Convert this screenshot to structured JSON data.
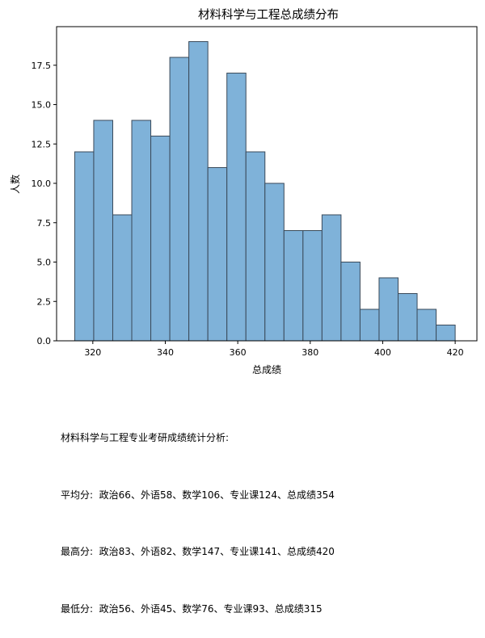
{
  "chart_data": {
    "type": "bar",
    "title": "材料科学与工程总成绩分布",
    "xlabel": "总成绩",
    "ylabel": "人数",
    "xlim": [
      310,
      426
    ],
    "ylim": [
      0,
      19.95
    ],
    "bin_start": 315,
    "bin_width": 5.25,
    "values": [
      12,
      14,
      8,
      14,
      13,
      18,
      19,
      11,
      17,
      12,
      10,
      7,
      7,
      8,
      5,
      2,
      4,
      3,
      2,
      1
    ],
    "xticks": [
      320,
      340,
      360,
      380,
      400,
      420
    ],
    "yticks": [
      0.0,
      2.5,
      5.0,
      7.5,
      10.0,
      12.5,
      15.0,
      17.5
    ],
    "yticklabels": [
      "0.0",
      "2.5",
      "5.0",
      "7.5",
      "10.0",
      "12.5",
      "15.0",
      "17.5"
    ],
    "bar_color": "#7fb2d9",
    "edge_color": "#3a4a5a",
    "grid": false
  },
  "stats": {
    "heading": "材料科学与工程专业考研成绩统计分析:",
    "avg": "平均分:  政治66、外语58、数学106、专业课124、总成绩354",
    "max": "最高分:  政治83、外语82、数学147、专业课141、总成绩420",
    "min": "最低分:  政治56、外语45、数学76、专业课93、总成绩315"
  }
}
